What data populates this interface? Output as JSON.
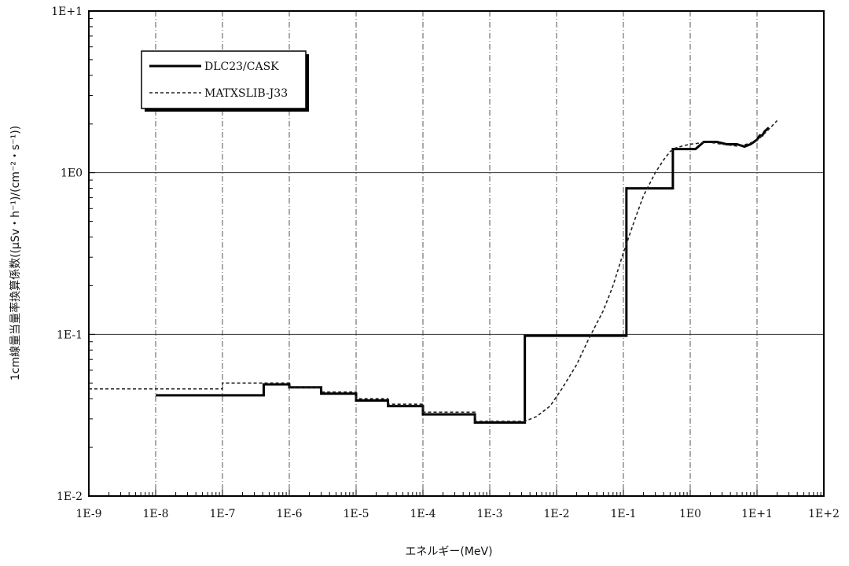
{
  "chart_data": {
    "type": "line",
    "title": "",
    "xlabel": "エネルギー(MeV)",
    "ylabel": "1cm線量当量率換算係数((μSv・h⁻¹)/(cm⁻²・s⁻¹))",
    "x_scale": "log",
    "y_scale": "log",
    "xlim": [
      1e-09,
      100
    ],
    "ylim": [
      0.01,
      10
    ],
    "x_tick_values": [
      1e-09,
      1e-08,
      1e-07,
      1e-06,
      1e-05,
      0.0001,
      0.001,
      0.01,
      0.1,
      1,
      10,
      100
    ],
    "x_tick_labels": [
      "1E-9",
      "1E-8",
      "1E-7",
      "1E-6",
      "1E-5",
      "1E-4",
      "1E-3",
      "1E-2",
      "1E-1",
      "1E0",
      "1E+1",
      "1E+2"
    ],
    "y_tick_values": [
      0.01,
      0.1,
      1,
      10
    ],
    "y_tick_labels": [
      "1E-2",
      "1E-1",
      "1E0",
      "1E+1"
    ],
    "grid": true,
    "legend_position": "top-left",
    "series": [
      {
        "name": "DLC23/CASK",
        "style": "solid",
        "color": "#000000",
        "x": [
          1e-08,
          4.14e-07,
          4.14e-07,
          1e-06,
          1e-06,
          3e-06,
          3e-06,
          1e-05,
          1e-05,
          3e-05,
          3e-05,
          0.0001,
          0.0001,
          0.0006,
          0.0006,
          0.00335,
          0.00335,
          0.111,
          0.111,
          0.55,
          0.55,
          1.2,
          1.6,
          2.5,
          3.5,
          5,
          6.5,
          8,
          9,
          10,
          11,
          12,
          13,
          14,
          15
        ],
        "y": [
          0.042,
          0.042,
          0.049,
          0.049,
          0.047,
          0.047,
          0.043,
          0.043,
          0.039,
          0.039,
          0.036,
          0.036,
          0.032,
          0.032,
          0.0285,
          0.0285,
          0.098,
          0.098,
          0.8,
          0.8,
          1.4,
          1.4,
          1.55,
          1.55,
          1.5,
          1.5,
          1.45,
          1.5,
          1.55,
          1.6,
          1.7,
          1.7,
          1.8,
          1.85,
          1.9
        ]
      },
      {
        "name": "MATXSLIB-J33",
        "style": "dashed",
        "color": "#222222",
        "x": [
          1e-09,
          1e-07,
          1e-07,
          1e-06,
          1e-06,
          3e-06,
          3e-06,
          1e-05,
          1e-05,
          3e-05,
          3e-05,
          0.0001,
          0.0001,
          0.0006,
          0.0006,
          0.00335,
          0.005,
          0.008,
          0.012,
          0.02,
          0.03,
          0.05,
          0.07,
          0.1,
          0.15,
          0.2,
          0.3,
          0.4,
          0.5,
          0.6,
          0.8,
          1,
          1.5,
          2,
          3,
          5,
          7,
          10,
          14,
          20
        ],
        "y": [
          0.046,
          0.046,
          0.05,
          0.05,
          0.047,
          0.047,
          0.044,
          0.044,
          0.04,
          0.04,
          0.037,
          0.037,
          0.033,
          0.033,
          0.029,
          0.029,
          0.031,
          0.036,
          0.046,
          0.065,
          0.093,
          0.14,
          0.2,
          0.32,
          0.52,
          0.72,
          1.0,
          1.2,
          1.35,
          1.42,
          1.47,
          1.5,
          1.53,
          1.54,
          1.5,
          1.46,
          1.5,
          1.58,
          1.8,
          2.1
        ]
      }
    ]
  }
}
